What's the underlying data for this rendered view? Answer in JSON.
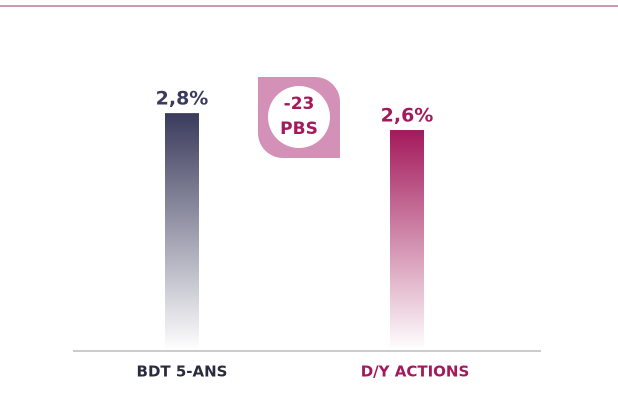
{
  "chart_data": {
    "type": "bar",
    "categories": [
      "BDT 5-ANS",
      "D/Y ACTIONS"
    ],
    "values": [
      2.8,
      2.6
    ],
    "value_labels": [
      "2,8%",
      "2,6%"
    ],
    "colors": [
      "#3a3a5c",
      "#a3195b"
    ],
    "annotation": [
      "-23",
      "PBS"
    ]
  }
}
